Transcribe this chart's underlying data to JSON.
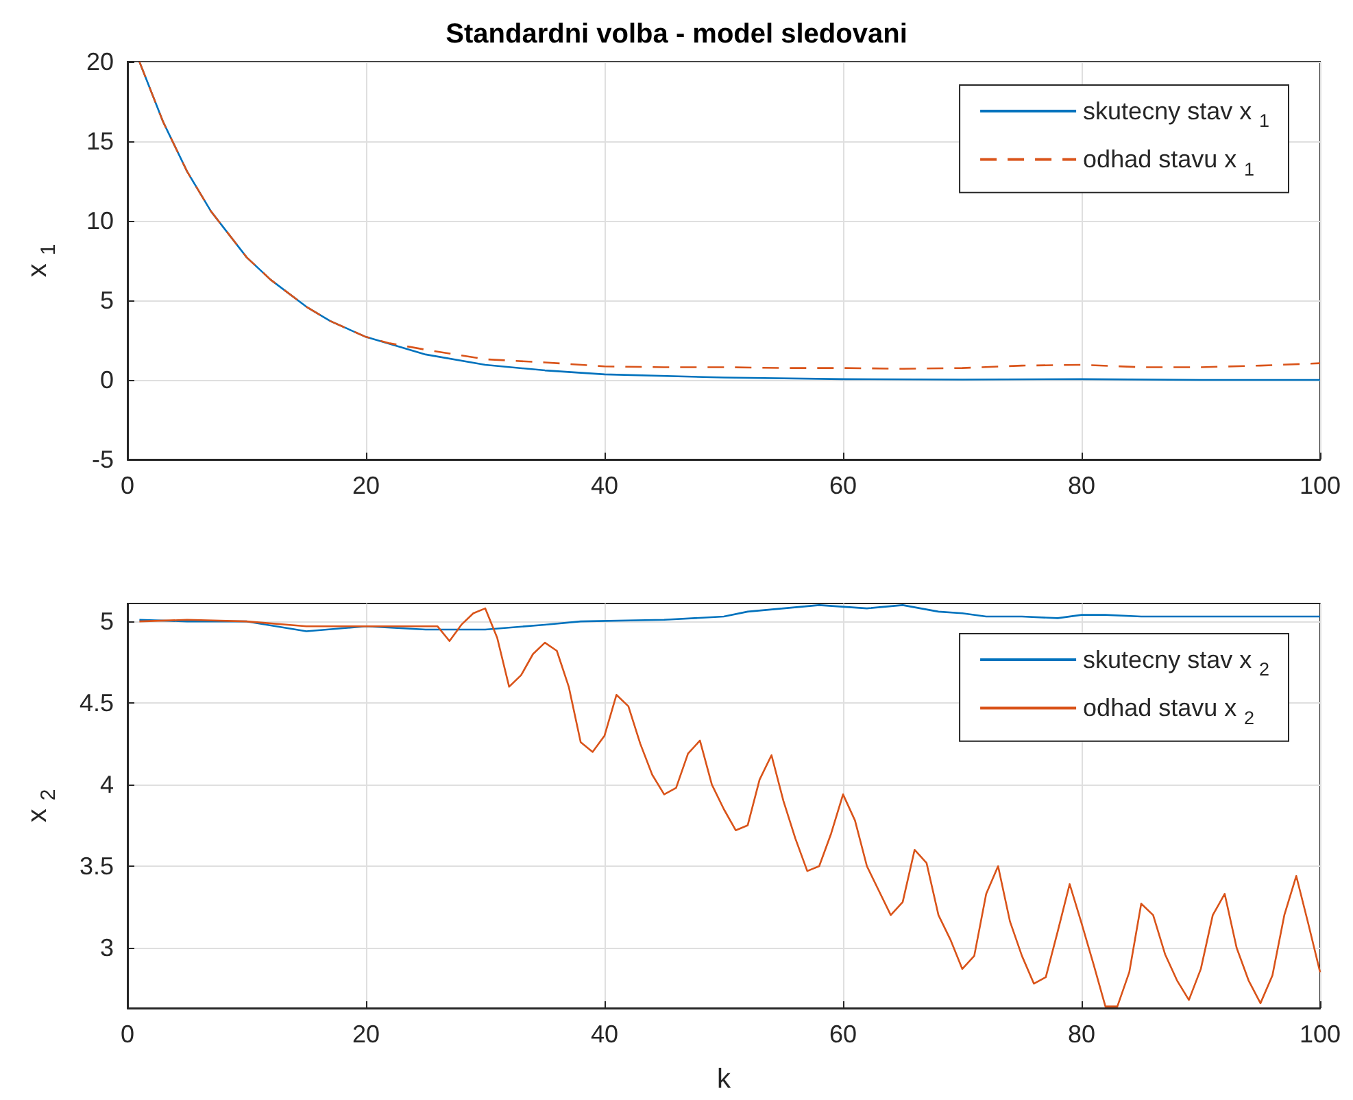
{
  "chart_data": [
    {
      "type": "line",
      "title": "Standardni volba - model sledovani",
      "ylabel": "x$_{1}$",
      "xlim": [
        0,
        100
      ],
      "xticks": [
        0,
        20,
        40,
        60,
        80,
        100
      ],
      "ylim": [
        -5,
        20
      ],
      "yticks": [
        -5,
        0,
        5,
        10,
        15,
        20
      ],
      "grid": true,
      "legend": "top right",
      "marker": "none",
      "series": [
        {
          "name": "skutecny stav x$_{1}$",
          "color": "#0072bd",
          "line_style": "solid",
          "x": [
            1,
            3,
            5,
            7,
            10,
            12,
            15,
            17,
            20,
            25,
            30,
            35,
            40,
            50,
            60,
            70,
            80,
            90,
            100
          ],
          "values": [
            20,
            16.2,
            13.1,
            10.6,
            7.7,
            6.3,
            4.6,
            3.7,
            2.7,
            1.6,
            0.95,
            0.6,
            0.35,
            0.15,
            0.05,
            0.02,
            0.05,
            0,
            0
          ]
        },
        {
          "name": "odhad stavu x$_{1}$",
          "color": "#d95319",
          "line_style": "dashed",
          "x": [
            1,
            3,
            5,
            7,
            10,
            12,
            15,
            17,
            20,
            22,
            25,
            30,
            35,
            40,
            45,
            50,
            55,
            60,
            65,
            70,
            75,
            80,
            85,
            90,
            95,
            100
          ],
          "values": [
            20,
            16.2,
            13.1,
            10.6,
            7.7,
            6.3,
            4.6,
            3.7,
            2.7,
            2.3,
            1.9,
            1.3,
            1.1,
            0.85,
            0.8,
            0.8,
            0.75,
            0.75,
            0.7,
            0.75,
            0.9,
            0.95,
            0.8,
            0.8,
            0.9,
            1.05
          ]
        }
      ]
    },
    {
      "type": "line",
      "xlabel": "k",
      "ylabel": "x$_{2}$",
      "xlim": [
        0,
        100
      ],
      "xticks": [
        0,
        20,
        40,
        60,
        80,
        100
      ],
      "ylim": [
        2.63,
        5.11
      ],
      "yticks": [
        3,
        3.5,
        4,
        4.5,
        5
      ],
      "grid": true,
      "legend": "top right",
      "marker": "none",
      "series": [
        {
          "name": "skutecny stav x$_{2}$",
          "color": "#0072bd",
          "line_style": "solid",
          "x": [
            1,
            5,
            10,
            15,
            20,
            25,
            30,
            35,
            38,
            45,
            50,
            52,
            55,
            58,
            62,
            65,
            68,
            70,
            72,
            75,
            78,
            80,
            82,
            85,
            90,
            95,
            100
          ],
          "values": [
            5.01,
            5.0,
            5.0,
            4.94,
            4.97,
            4.95,
            4.95,
            4.98,
            5.0,
            5.01,
            5.03,
            5.06,
            5.08,
            5.1,
            5.08,
            5.1,
            5.06,
            5.05,
            5.03,
            5.03,
            5.02,
            5.04,
            5.04,
            5.03,
            5.03,
            5.03,
            5.03
          ]
        },
        {
          "name": "odhad stavu x$_{2}$",
          "color": "#d95319",
          "line_style": "solid",
          "x": [
            1,
            5,
            10,
            15,
            20,
            24,
            26,
            27,
            28,
            29,
            30,
            31,
            32,
            33,
            34,
            35,
            36,
            37,
            38,
            39,
            40,
            41,
            42,
            43,
            44,
            45,
            46,
            47,
            48,
            49,
            50,
            51,
            52,
            53,
            54,
            55,
            56,
            57,
            58,
            59,
            60,
            61,
            62,
            63,
            64,
            65,
            66,
            67,
            68,
            69,
            70,
            71,
            72,
            73,
            74,
            75,
            76,
            77,
            78,
            79,
            80,
            81,
            82,
            83,
            84,
            85,
            86,
            87,
            88,
            89,
            90,
            91,
            92,
            93,
            94,
            95,
            96,
            97,
            98,
            99,
            100
          ],
          "values": [
            5.0,
            5.01,
            5.0,
            4.97,
            4.97,
            4.97,
            4.97,
            4.88,
            4.98,
            5.05,
            5.08,
            4.9,
            4.6,
            4.67,
            4.8,
            4.87,
            4.82,
            4.6,
            4.26,
            4.2,
            4.3,
            4.55,
            4.48,
            4.25,
            4.06,
            3.94,
            3.98,
            4.19,
            4.27,
            4.0,
            3.85,
            3.72,
            3.75,
            4.03,
            4.18,
            3.9,
            3.67,
            3.47,
            3.5,
            3.7,
            3.94,
            3.78,
            3.5,
            3.35,
            3.2,
            3.28,
            3.6,
            3.52,
            3.2,
            3.05,
            2.87,
            2.95,
            3.33,
            3.5,
            3.16,
            2.95,
            2.78,
            2.82,
            3.1,
            3.39,
            3.15,
            2.9,
            2.64,
            2.64,
            2.85,
            3.27,
            3.2,
            2.96,
            2.8,
            2.68,
            2.87,
            3.2,
            3.33,
            3.0,
            2.8,
            2.66,
            2.83,
            3.2,
            3.44,
            3.15,
            2.85
          ]
        }
      ]
    }
  ]
}
